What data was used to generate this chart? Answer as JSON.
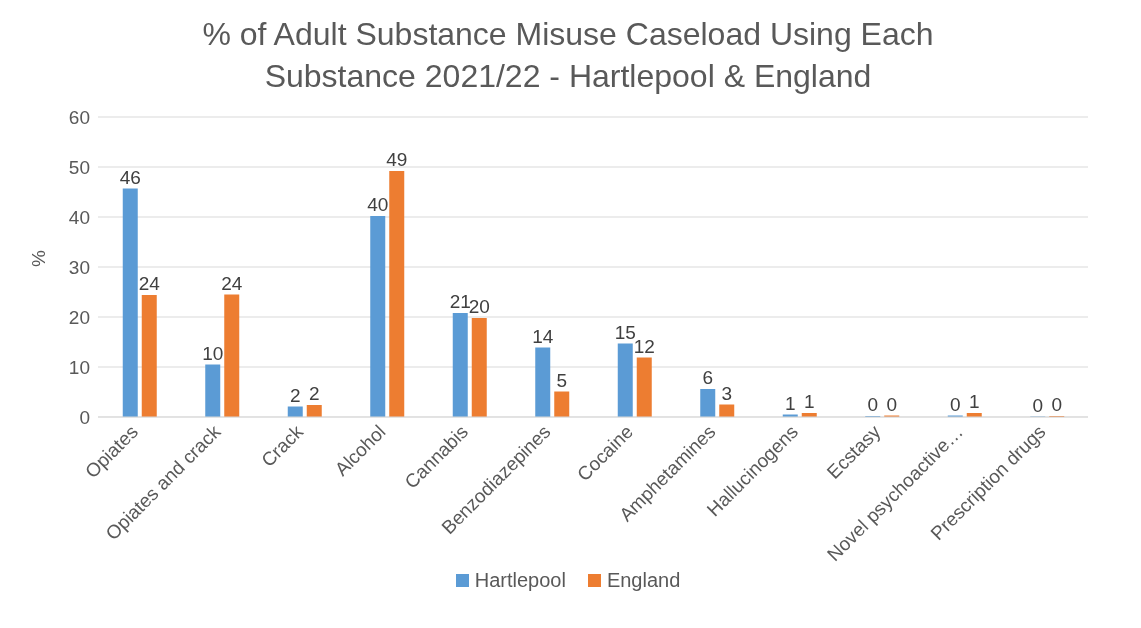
{
  "chart_data": {
    "type": "bar",
    "title": "% of Adult Substance Misuse Caseload Using Each Substance 2021/22 - Hartlepool & England",
    "ylabel": "%",
    "categories": [
      "Opiates",
      "Opiates and crack",
      "Crack",
      "Alcohol",
      "Cannabis",
      "Benzodiazepines",
      "Cocaine",
      "Amphetamines",
      "Hallucinogens",
      "Ecstasy",
      "Novel psychoactive…",
      "Prescription drugs"
    ],
    "series": [
      {
        "name": "Hartlepool",
        "color": "#5b9bd5",
        "values": [
          45.7,
          10.5,
          2.1,
          40.2,
          20.8,
          13.9,
          14.7,
          5.6,
          0.5,
          0.2,
          0.3,
          0.1
        ],
        "value_labels": [
          "46",
          "10",
          "2",
          "40",
          "21",
          "14",
          "15",
          "6",
          "1",
          "0",
          "0",
          "0"
        ]
      },
      {
        "name": "England",
        "color": "#ed7d31",
        "values": [
          24.4,
          24.5,
          2.4,
          49.2,
          19.8,
          5.1,
          11.9,
          2.5,
          0.8,
          0.3,
          0.8,
          0.2
        ],
        "value_labels": [
          "24",
          "24",
          "2",
          "49",
          "20",
          "5",
          "12",
          "3",
          "1",
          "0",
          "1",
          "0"
        ]
      }
    ],
    "ylim": [
      0,
      60
    ],
    "yticks": [
      0,
      10,
      20,
      30,
      40,
      50,
      60
    ],
    "grid": "y",
    "legend": "bottom"
  }
}
